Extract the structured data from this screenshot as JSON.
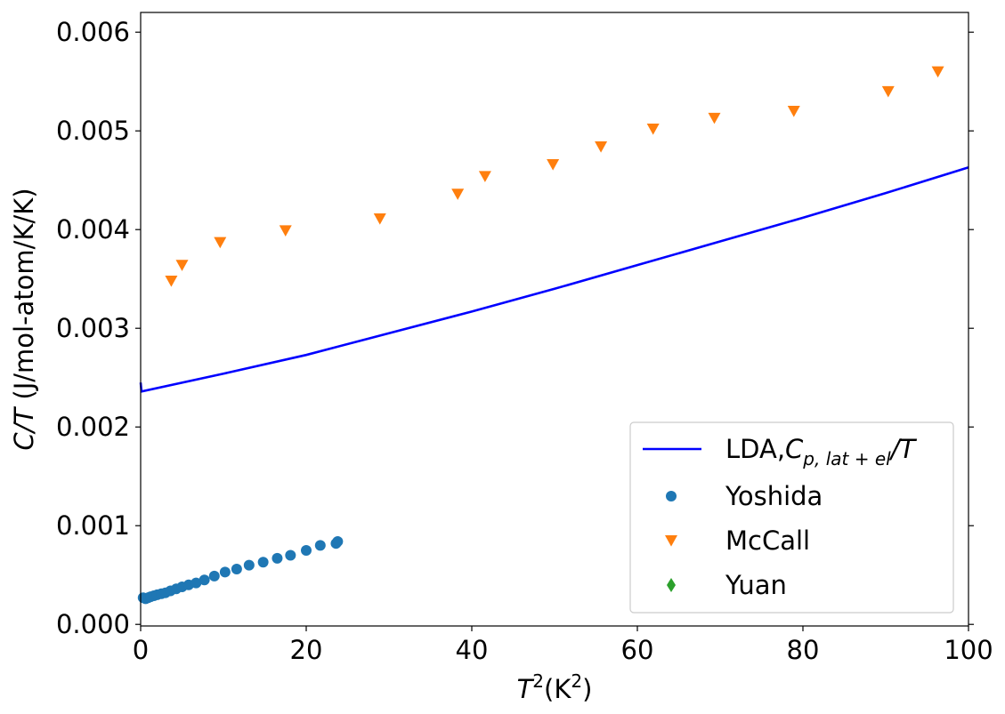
{
  "chart_data": {
    "type": "scatter",
    "xlim": [
      0,
      100
    ],
    "ylim": [
      0,
      0.0062
    ],
    "xticks": [
      0,
      20,
      40,
      60,
      80,
      100
    ],
    "xtick_labels": [
      "0",
      "20",
      "40",
      "60",
      "80",
      "100"
    ],
    "yticks": [
      0.0,
      0.001,
      0.002,
      0.003,
      0.004,
      0.005,
      0.006
    ],
    "ytick_labels": [
      "0.000",
      "0.001",
      "0.002",
      "0.003",
      "0.004",
      "0.005",
      "0.006"
    ],
    "xlabel": {
      "base": "T",
      "sup": "2",
      "rest": "(K",
      "sup2": "2",
      "close": ")"
    },
    "ylabel": {
      "italic": "C/T",
      "rest": " (J/mol-atom/K/K)"
    },
    "grid": false,
    "legend_position": "lower-right",
    "series": [
      {
        "name": "LDA,",
        "name_math": {
          "C": "C",
          "sub": "p, lat + el",
          "tail": "/T"
        },
        "kind": "line",
        "color": "#0000ff",
        "x": [
          0,
          0.1,
          10,
          20,
          30,
          40,
          50,
          60,
          70,
          80,
          90,
          100
        ],
        "y": [
          0.00245,
          0.00236,
          0.00254,
          0.00273,
          0.00295,
          0.00317,
          0.0034,
          0.00364,
          0.00388,
          0.00412,
          0.00437,
          0.00463
        ]
      },
      {
        "name": "Yoshida",
        "kind": "scatter",
        "marker": "circle",
        "color": "#1f77b4",
        "x": [
          0.3,
          0.6,
          0.9,
          1.2,
          1.6,
          2.0,
          2.5,
          3.0,
          3.6,
          4.3,
          5.0,
          5.8,
          6.7,
          7.7,
          8.9,
          10.2,
          11.6,
          13.1,
          14.8,
          16.5,
          18.1,
          20.0,
          21.7,
          23.6,
          23.8
        ],
        "y": [
          0.00027,
          0.00026,
          0.00027,
          0.00028,
          0.00029,
          0.0003,
          0.00031,
          0.00032,
          0.00034,
          0.00036,
          0.00038,
          0.0004,
          0.00042,
          0.00045,
          0.00049,
          0.00053,
          0.00056,
          0.0006,
          0.00063,
          0.00067,
          0.0007,
          0.00075,
          0.0008,
          0.00082,
          0.00084
        ]
      },
      {
        "name": "McCall",
        "kind": "scatter",
        "marker": "triangle-down",
        "color": "#ff7f0e",
        "x": [
          3.7,
          5.0,
          9.6,
          17.5,
          28.9,
          38.3,
          41.6,
          49.8,
          55.6,
          61.9,
          69.3,
          78.9,
          90.3,
          96.3
        ],
        "y": [
          0.00348,
          0.00364,
          0.00387,
          0.00399,
          0.00411,
          0.00436,
          0.00454,
          0.00466,
          0.00484,
          0.00502,
          0.00513,
          0.0052,
          0.0054,
          0.0056
        ]
      },
      {
        "name": "Yuan",
        "kind": "scatter",
        "marker": "diamond",
        "color": "#2ca02c",
        "x": [],
        "y": []
      }
    ]
  }
}
